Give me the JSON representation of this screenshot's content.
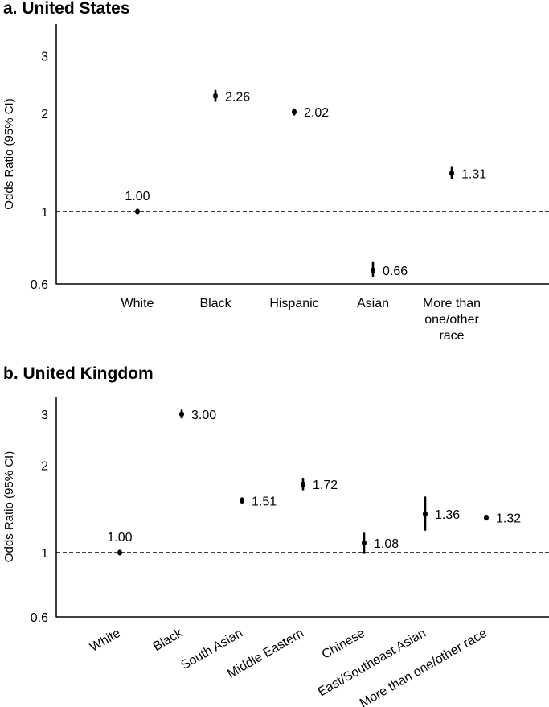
{
  "chart_data": [
    {
      "type": "scatter",
      "title": "a. United States",
      "ylabel": "Odds Ratio (95% CI)",
      "yscale": "log",
      "ylim": [
        0.6,
        3.3
      ],
      "yticks": [
        "0.6",
        "1",
        "2",
        "3"
      ],
      "reference_line": 1,
      "categories": [
        "White",
        "Black",
        "Hispanic",
        "Asian",
        "More than one/other race"
      ],
      "category_display": [
        [
          "White"
        ],
        [
          "Black"
        ],
        [
          "Hispanic"
        ],
        [
          "Asian"
        ],
        [
          "More than",
          "one/other",
          "race"
        ]
      ],
      "points": [
        {
          "category": "White",
          "or": 1.0,
          "lo": 1.0,
          "hi": 1.0,
          "label": "1.00"
        },
        {
          "category": "Black",
          "or": 2.26,
          "lo": 2.17,
          "hi": 2.36,
          "label": "2.26"
        },
        {
          "category": "Hispanic",
          "or": 2.02,
          "lo": 1.97,
          "hi": 2.07,
          "label": "2.02"
        },
        {
          "category": "Asian",
          "or": 0.66,
          "lo": 0.63,
          "hi": 0.7,
          "label": "0.66"
        },
        {
          "category": "More than one/other race",
          "or": 1.31,
          "lo": 1.26,
          "hi": 1.37,
          "label": "1.31"
        }
      ]
    },
    {
      "type": "scatter",
      "title": "b. United Kingdom",
      "ylabel": "Odds Ratio (95% CI)",
      "yscale": "log",
      "ylim": [
        0.6,
        3.3
      ],
      "yticks": [
        "0.6",
        "1",
        "2",
        "3"
      ],
      "reference_line": 1,
      "categories": [
        "White",
        "Black",
        "South Asian",
        "Middle Eastern",
        "Chinese",
        "East/Southeast Asian",
        "More than one/other race"
      ],
      "points": [
        {
          "category": "White",
          "or": 1.0,
          "lo": 1.0,
          "hi": 1.0,
          "label": "1.00"
        },
        {
          "category": "Black",
          "or": 3.0,
          "lo": 2.9,
          "hi": 3.11,
          "label": "3.00"
        },
        {
          "category": "South Asian",
          "or": 1.51,
          "lo": 1.48,
          "hi": 1.55,
          "label": "1.51"
        },
        {
          "category": "Middle Eastern",
          "or": 1.72,
          "lo": 1.64,
          "hi": 1.81,
          "label": "1.72"
        },
        {
          "category": "Chinese",
          "or": 1.08,
          "lo": 0.99,
          "hi": 1.17,
          "label": "1.08"
        },
        {
          "category": "East/Southeast Asian",
          "or": 1.36,
          "lo": 1.19,
          "hi": 1.56,
          "label": "1.36"
        },
        {
          "category": "More than one/other race",
          "or": 1.32,
          "lo": 1.29,
          "hi": 1.35,
          "label": "1.32"
        }
      ]
    }
  ]
}
